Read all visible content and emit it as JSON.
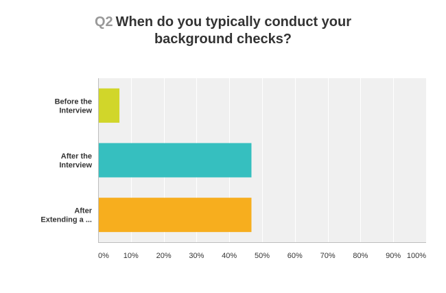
{
  "chart_data": {
    "type": "bar",
    "orientation": "horizontal",
    "question_number": "Q2",
    "title_line1": "When do you typically conduct your",
    "title_line2": "background checks?",
    "categories": [
      [
        "Before the",
        "Interview"
      ],
      [
        "After the",
        "Interview"
      ],
      [
        "After",
        "Extending a ..."
      ]
    ],
    "values": [
      6.5,
      46.75,
      46.75
    ],
    "colors": [
      "#d1d62a",
      "#36bfbf",
      "#f7ae1e"
    ],
    "xlim": [
      0,
      100
    ],
    "xticks": [
      0,
      10,
      20,
      30,
      40,
      50,
      60,
      70,
      80,
      90,
      100
    ],
    "xtick_labels": [
      "0%",
      "10%",
      "20%",
      "30%",
      "40%",
      "50%",
      "60%",
      "70%",
      "80%",
      "90%",
      "100%"
    ],
    "grid": true,
    "legend": "none"
  }
}
